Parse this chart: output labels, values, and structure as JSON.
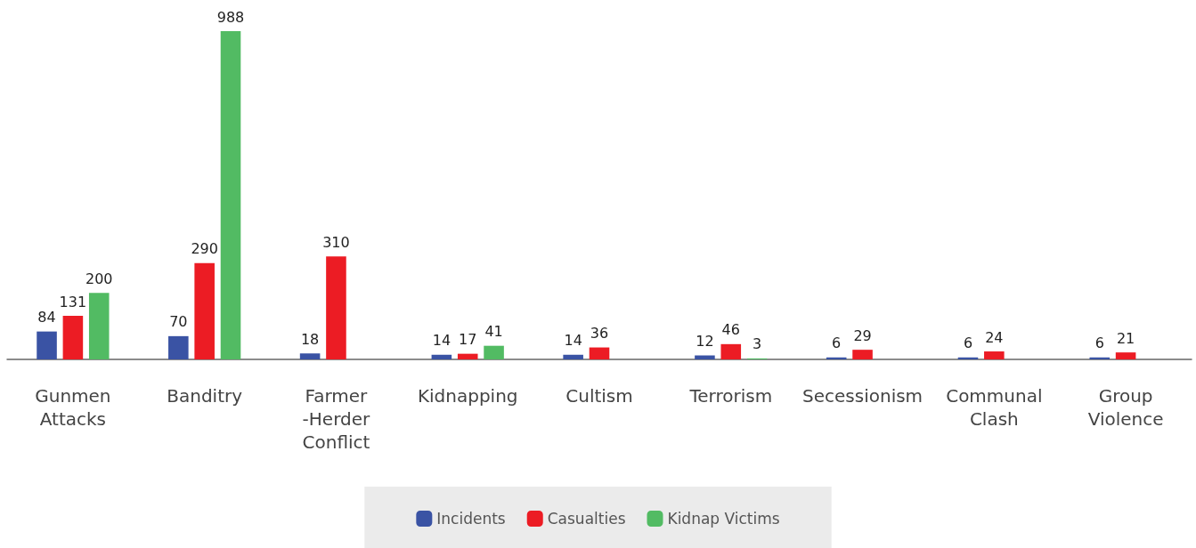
{
  "chart_data": {
    "type": "bar",
    "categories": [
      "Gunmen\nAttacks",
      "Banditry",
      "Farmer\n-Herder\nConflict",
      "Kidnapping",
      "Cultism",
      "Terrorism",
      "Secessionism",
      "Communal\nClash",
      "Group\nViolence"
    ],
    "series": [
      {
        "name": "Incidents",
        "color": "#3a53a4",
        "values": [
          84,
          70,
          18,
          14,
          14,
          12,
          6,
          6,
          6
        ]
      },
      {
        "name": "Casualties",
        "color": "#ec1c24",
        "values": [
          131,
          290,
          310,
          17,
          36,
          46,
          29,
          24,
          21
        ]
      },
      {
        "name": "Kidnap Victims",
        "color": "#52bb63",
        "values": [
          200,
          988,
          null,
          41,
          null,
          3,
          null,
          null,
          null
        ]
      }
    ],
    "data_labels": true,
    "grid": false,
    "legend": "bottom"
  }
}
